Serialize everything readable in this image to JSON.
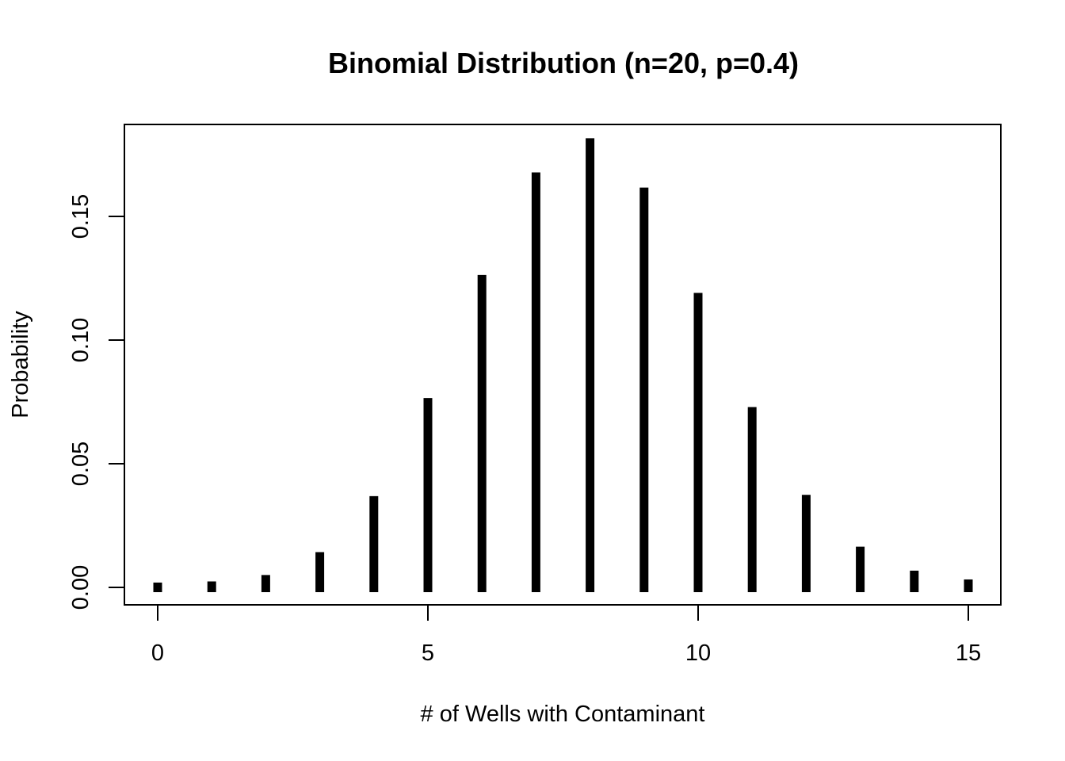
{
  "chart_data": {
    "type": "bar",
    "style": "vertical-lines",
    "title": "Binomial Distribution (n=20, p=0.4)",
    "xlabel": "# of Wells with Contaminant",
    "ylabel": "Probability",
    "x": [
      0,
      1,
      2,
      3,
      4,
      5,
      6,
      7,
      8,
      9,
      10,
      11,
      12,
      13,
      14,
      15
    ],
    "values": [
      3.66e-05,
      0.000487,
      0.003087,
      0.01235,
      0.034991,
      0.074647,
      0.124412,
      0.165882,
      0.179706,
      0.159738,
      0.117142,
      0.070995,
      0.035497,
      0.014563,
      0.004854,
      0.001294
    ],
    "xticks": [
      0,
      5,
      10,
      15
    ],
    "xtick_labels": [
      "0",
      "5",
      "10",
      "15"
    ],
    "yticks": [
      0,
      0.05,
      0.1,
      0.15
    ],
    "ytick_labels": [
      "0.00",
      "0.05",
      "0.10",
      "0.15"
    ],
    "xlim": [
      -0.6,
      15.6
    ],
    "ylim": [
      -0.007,
      0.187
    ],
    "grid": false,
    "bar_color": "#000000"
  }
}
